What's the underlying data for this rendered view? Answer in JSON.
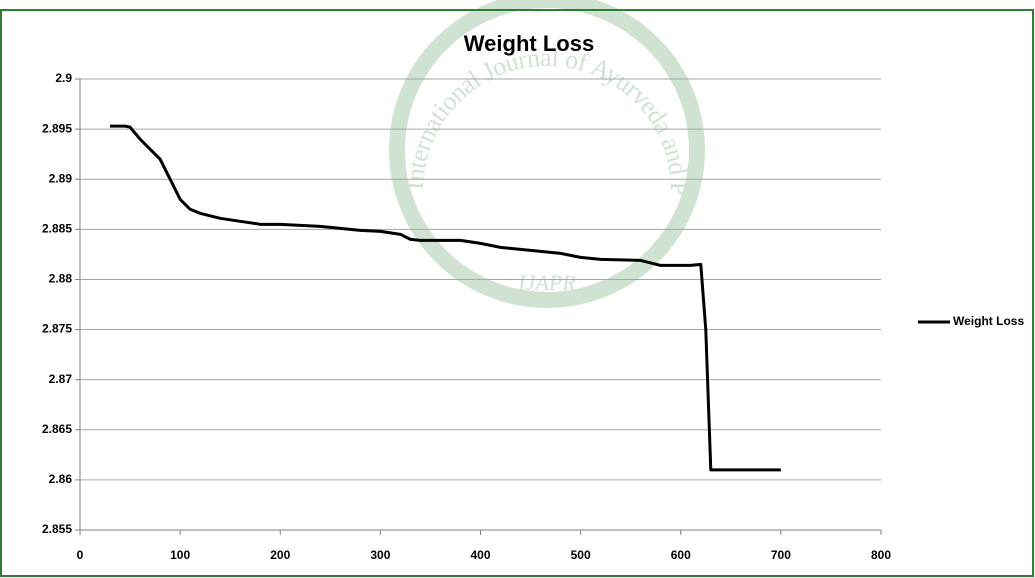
{
  "chart_data": {
    "type": "line",
    "title": "Weight Loss",
    "watermark": {
      "ring": "International Journal of Ayurveda and Pharma Research",
      "center": "IJAPR"
    },
    "x": [
      30,
      45,
      50,
      60,
      70,
      80,
      90,
      100,
      110,
      120,
      140,
      160,
      180,
      200,
      220,
      240,
      260,
      280,
      300,
      320,
      330,
      340,
      380,
      400,
      420,
      440,
      460,
      480,
      500,
      520,
      560,
      580,
      600,
      610,
      620,
      625,
      630,
      640,
      700
    ],
    "series": [
      {
        "name": "Weight Loss",
        "color": "#000000",
        "values": [
          2.8953,
          2.8953,
          2.8952,
          2.894,
          2.893,
          2.892,
          2.89,
          2.888,
          2.887,
          2.8866,
          2.8861,
          2.8858,
          2.8855,
          2.8855,
          2.8854,
          2.8853,
          2.8851,
          2.8849,
          2.8848,
          2.8845,
          2.884,
          2.8839,
          2.8839,
          2.8836,
          2.8832,
          2.883,
          2.8828,
          2.8826,
          2.8822,
          2.882,
          2.8819,
          2.8814,
          2.8814,
          2.8814,
          2.8815,
          2.875,
          2.861,
          2.861,
          2.861
        ]
      }
    ],
    "xlim": [
      0,
      800
    ],
    "xticks": [
      0,
      100,
      200,
      300,
      400,
      500,
      600,
      700,
      800
    ],
    "ylim": [
      2.855,
      2.9
    ],
    "yticks": [
      2.855,
      2.86,
      2.865,
      2.87,
      2.875,
      2.88,
      2.885,
      2.89,
      2.895,
      2.9
    ],
    "grid": true,
    "legend": "right"
  }
}
